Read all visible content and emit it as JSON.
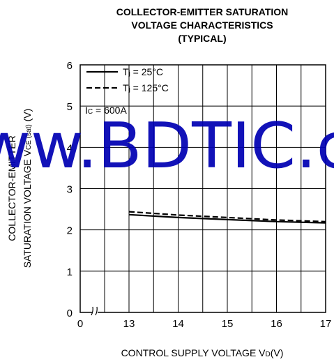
{
  "chart_data": {
    "type": "line",
    "title_lines": [
      "COLLECTOR-EMITTER SATURATION",
      "VOLTAGE CHARACTERISTICS",
      "(TYPICAL)"
    ],
    "xlabel": {
      "main": "CONTROL SUPPLY VOLTAGE  V",
      "sub": "D",
      "unit": "(V)"
    },
    "ylabel": {
      "line1": "COLLECTOR-EMITTER",
      "line2_main": "SATURATION VOLTAGE  V",
      "line2_sub": "CE (sat)",
      "line2_unit": " (V)"
    },
    "x_ticks": [
      "0",
      "13",
      "14",
      "15",
      "16",
      "17"
    ],
    "y_ticks": [
      "0",
      "1",
      "2",
      "3",
      "4",
      "5",
      "6"
    ],
    "x_range": [
      12,
      17
    ],
    "y_range": [
      0,
      6
    ],
    "x_axis_break": true,
    "grid": true,
    "legend_position": "top-left",
    "condition": {
      "main": "I",
      "sub": "C",
      "rest": " = 600A"
    },
    "series": [
      {
        "name": "Tj = 25°C",
        "name_main": "T",
        "name_sub": "j",
        "name_rest": " = 25°C",
        "style": "solid",
        "x": [
          13,
          14,
          15,
          16,
          17
        ],
        "y": [
          2.37,
          2.3,
          2.25,
          2.2,
          2.17
        ]
      },
      {
        "name": "Tj = 125°C",
        "name_main": "T",
        "name_sub": "j",
        "name_rest": " = 125°C",
        "style": "dashed",
        "x": [
          13,
          14,
          15,
          16,
          17
        ],
        "y": [
          2.44,
          2.36,
          2.3,
          2.24,
          2.2
        ]
      }
    ]
  },
  "watermark": "www.BDTIC.com",
  "colors": {
    "line": "#000000",
    "grid": "#000000",
    "watermark": "#0000b3"
  }
}
